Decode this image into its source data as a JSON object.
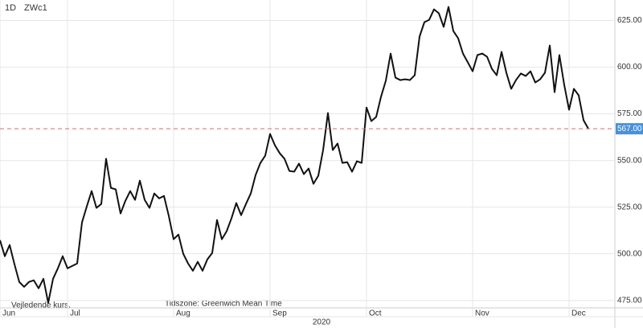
{
  "chart_data": {
    "type": "line",
    "title": "ZWc1",
    "interval": "1D",
    "annotations": [
      "Vejledende kurs.",
      "Tidszone: Greenwich Mean Time"
    ],
    "x_year": "2020",
    "x": [
      0,
      1,
      2,
      3,
      4,
      5,
      6,
      7,
      8,
      9,
      10,
      11,
      12,
      13,
      14,
      15,
      16,
      17,
      18,
      19,
      20,
      21,
      22,
      23,
      24,
      25,
      26,
      27,
      28,
      29,
      30,
      31,
      32,
      33,
      34,
      35,
      36,
      37,
      38,
      39,
      40,
      41,
      42,
      43,
      44,
      45,
      46,
      47,
      48,
      49,
      50,
      51,
      52,
      53,
      54,
      55,
      56,
      57,
      58,
      59,
      60,
      61,
      62,
      63,
      64,
      65,
      66,
      67,
      68,
      69,
      70,
      71,
      72,
      73,
      74,
      75,
      76,
      77,
      78,
      79,
      80,
      81,
      82,
      83,
      84,
      85,
      86,
      87,
      88,
      89,
      90,
      91,
      92,
      93,
      94,
      95,
      96,
      97,
      98,
      99,
      100,
      101,
      102,
      103,
      104,
      105,
      106,
      107,
      108,
      109,
      110,
      111,
      112,
      113,
      114,
      115,
      116,
      117,
      118,
      119,
      120,
      121,
      122
    ],
    "series": [
      {
        "color": "#111111",
        "values": [
          507.3,
          498.7,
          504.7,
          494.4,
          484.9,
          482.3,
          484.9,
          485.8,
          481.5,
          486.6,
          473.7,
          486.6,
          492.2,
          498.7,
          492.2,
          493.5,
          494.8,
          516.8,
          525.4,
          533.6,
          524.6,
          526.7,
          550.9,
          535.3,
          534.5,
          521.6,
          528.4,
          533.6,
          528.9,
          539.2,
          528.9,
          524.6,
          532.3,
          529.7,
          531,
          520.3,
          507.8,
          510.3,
          500,
          494.8,
          490.9,
          495.7,
          490.9,
          497,
          500.4,
          518.1,
          507.8,
          512.1,
          519,
          527.2,
          520.7,
          526.7,
          532.3,
          542.2,
          548.7,
          552.6,
          564.2,
          558.2,
          553.9,
          550.9,
          544.4,
          544,
          548.3,
          542.7,
          545.7,
          537.5,
          541.8,
          555.6,
          575.4,
          555.6,
          559.1,
          548.7,
          549.1,
          544,
          549.6,
          548.7,
          578.4,
          571.1,
          573.3,
          584.1,
          592.7,
          607.3,
          594.4,
          593.1,
          593.5,
          593.1,
          595.7,
          616.4,
          624.1,
          625.4,
          631,
          628.9,
          621.6,
          632.3,
          619.4,
          615.5,
          607.3,
          602.6,
          597.8,
          606.5,
          607.3,
          605.6,
          599.1,
          595.7,
          608.2,
          597,
          588.4,
          593.1,
          596.6,
          595.3,
          597.8,
          591.8,
          593.5,
          597,
          611.6,
          586.6,
          606.5,
          590.5,
          577.2,
          588.4,
          584.9,
          571.6,
          567
        ]
      }
    ],
    "last_price": {
      "value": 567,
      "label": "567.00"
    },
    "last_price_color": "#4a90d9",
    "reference_line_color": "#e06666",
    "xlim": [
      0,
      127.5
    ],
    "xticks": [
      {
        "value": 0,
        "label": "Jun"
      },
      {
        "value": 14,
        "label": "Jul"
      },
      {
        "value": 36,
        "label": "Aug"
      },
      {
        "value": 56,
        "label": "Sep"
      },
      {
        "value": 76,
        "label": "Oct"
      },
      {
        "value": 98,
        "label": "Nov"
      },
      {
        "value": 118,
        "label": "Dec"
      }
    ],
    "ylim": [
      471,
      636
    ],
    "yticks": [
      {
        "value": 475,
        "label": "475.00"
      },
      {
        "value": 500,
        "label": "500.00"
      },
      {
        "value": 525,
        "label": "525.00"
      },
      {
        "value": 550,
        "label": "550.00"
      },
      {
        "value": 575,
        "label": "575.00"
      },
      {
        "value": 600,
        "label": "600.00"
      },
      {
        "value": 625,
        "label": "625.00"
      }
    ],
    "grid": true
  }
}
